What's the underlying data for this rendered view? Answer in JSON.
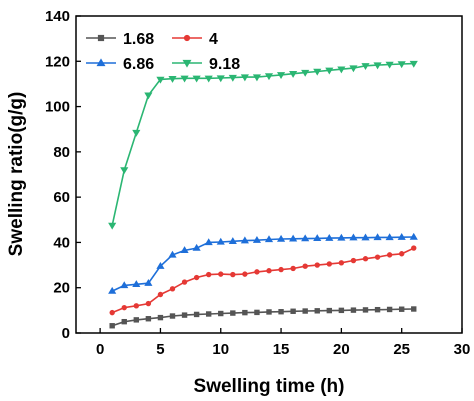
{
  "chart_data": {
    "type": "line",
    "title": "",
    "xlabel": "Swelling time (h)",
    "ylabel": "Swelling ratio(g/g)",
    "xlim": [
      -2,
      30
    ],
    "ylim": [
      0,
      140
    ],
    "xticks": [
      0,
      5,
      10,
      15,
      20,
      25,
      30
    ],
    "yticks": [
      0,
      20,
      40,
      60,
      80,
      100,
      120,
      140
    ],
    "grid": false,
    "legend_position": "top-left",
    "legend_columns": 2,
    "series": [
      {
        "name": "1.68",
        "color": "#555555",
        "marker": "square",
        "x": [
          1,
          2,
          3,
          4,
          5,
          6,
          7,
          8,
          9,
          10,
          11,
          12,
          13,
          14,
          15,
          16,
          17,
          18,
          19,
          20,
          21,
          22,
          23,
          24,
          25,
          26
        ],
        "y": [
          3.2,
          5.0,
          5.8,
          6.3,
          6.8,
          7.5,
          7.9,
          8.2,
          8.4,
          8.6,
          8.8,
          9.0,
          9.1,
          9.3,
          9.4,
          9.6,
          9.7,
          9.8,
          9.9,
          10.0,
          10.1,
          10.2,
          10.3,
          10.4,
          10.5,
          10.6
        ]
      },
      {
        "name": "4",
        "color": "#e53935",
        "marker": "circle",
        "x": [
          1,
          2,
          3,
          4,
          5,
          6,
          7,
          8,
          9,
          10,
          11,
          12,
          13,
          14,
          15,
          16,
          17,
          18,
          19,
          20,
          21,
          22,
          23,
          24,
          25,
          26
        ],
        "y": [
          9.0,
          11.2,
          12.0,
          13.0,
          17.0,
          19.5,
          22.5,
          24.5,
          25.8,
          26.0,
          25.8,
          26.0,
          27.0,
          27.5,
          28.0,
          28.5,
          29.5,
          30.0,
          30.5,
          31.0,
          32.0,
          32.8,
          33.5,
          34.5,
          35.0,
          37.5
        ]
      },
      {
        "name": "6.86",
        "color": "#1e6fd9",
        "marker": "triangle-up",
        "x": [
          1,
          2,
          3,
          4,
          5,
          6,
          7,
          8,
          9,
          10,
          11,
          12,
          13,
          14,
          15,
          16,
          17,
          18,
          19,
          20,
          21,
          22,
          23,
          24,
          25,
          26
        ],
        "y": [
          18.5,
          21.0,
          21.5,
          22.0,
          29.5,
          34.5,
          36.5,
          37.5,
          40.0,
          40.2,
          40.5,
          40.8,
          41.0,
          41.3,
          41.5,
          41.6,
          41.7,
          41.8,
          41.9,
          42.0,
          42.1,
          42.1,
          42.2,
          42.2,
          42.3,
          42.4
        ]
      },
      {
        "name": "9.18",
        "color": "#2bb673",
        "marker": "triangle-down",
        "x": [
          1,
          2,
          3,
          4,
          5,
          6,
          7,
          8,
          9,
          10,
          11,
          12,
          13,
          14,
          15,
          16,
          17,
          18,
          19,
          20,
          21,
          22,
          23,
          24,
          25,
          26
        ],
        "y": [
          47.5,
          72.0,
          88.5,
          105.0,
          112.0,
          112.3,
          112.5,
          112.5,
          112.5,
          112.6,
          112.8,
          113.0,
          113.0,
          113.5,
          114.0,
          114.5,
          115.0,
          115.5,
          116.0,
          116.5,
          117.0,
          118.0,
          118.3,
          118.6,
          118.8,
          119.0
        ]
      }
    ]
  }
}
